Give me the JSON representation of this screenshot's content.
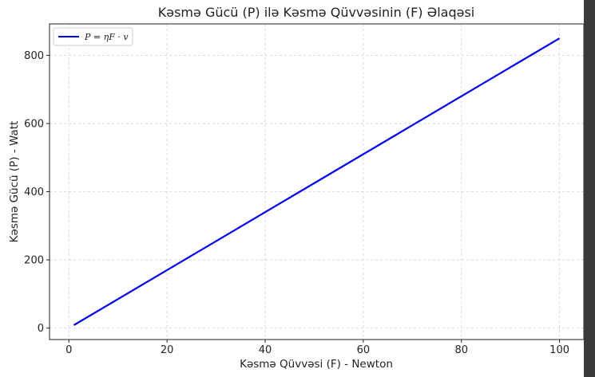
{
  "chart_data": {
    "type": "line",
    "title": "Kəsmə Gücü (P) ilə Kəsmə Qüvvəsinin (F) Əlaqəsi",
    "xlabel": "Kəsmə Qüvvəsi (F) - Newton",
    "ylabel": "Kəsmə Gücü (P) - Watt",
    "xlim": [
      -3.95,
      104.95
    ],
    "ylim": [
      -33.6,
      892.1
    ],
    "xticks": [
      0,
      20,
      40,
      60,
      80,
      100
    ],
    "yticks": [
      0,
      200,
      400,
      600,
      800
    ],
    "grid": true,
    "legend_position": "top-left",
    "series": [
      {
        "name": "P = ηF · v",
        "color": "#0000ee",
        "x": [
          1,
          100
        ],
        "y": [
          8.5,
          850
        ]
      }
    ]
  },
  "colors": {
    "line": "#0000ee",
    "grid": "#d0d0d0",
    "axis": "#222222",
    "background": "#ffffff"
  }
}
